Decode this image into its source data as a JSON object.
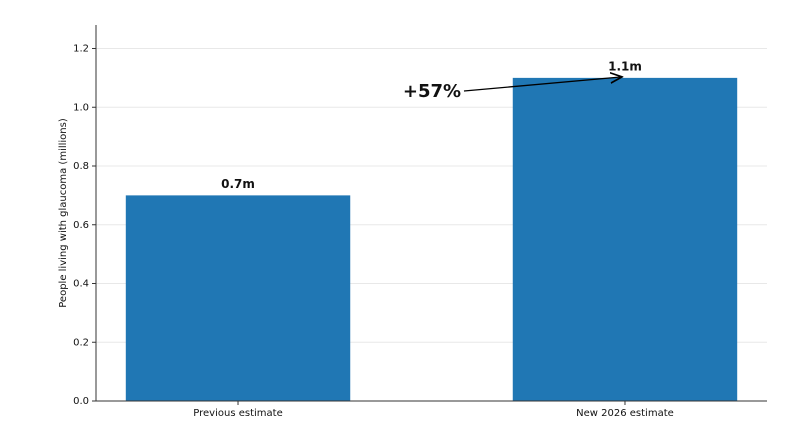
{
  "chart_data": {
    "type": "bar",
    "y_label": "People living with glaucoma (millions)",
    "categories": [
      "Previous estimate",
      "New 2026 estimate"
    ],
    "values": [
      0.7,
      1.1
    ],
    "value_labels": [
      "0.7m",
      "1.1m"
    ],
    "color": "#2077b4",
    "ylim": [
      0,
      1.28
    ],
    "yticks": [
      {
        "value": 0,
        "label": "0.0"
      },
      0.2,
      0.4,
      0.6,
      0.8,
      {
        "value": 1,
        "label": "1.0"
      },
      1.2
    ],
    "grid": true,
    "annotation": "+57%"
  }
}
